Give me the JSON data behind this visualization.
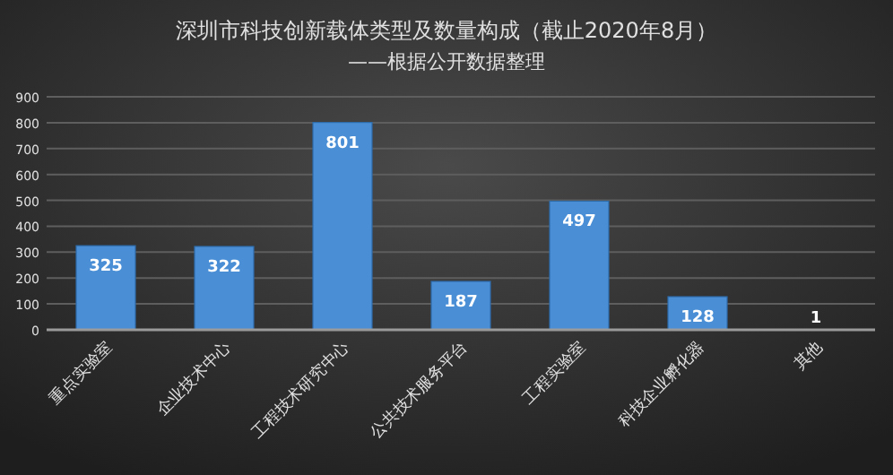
{
  "chart_data": {
    "type": "bar",
    "title": "深圳市科技创新载体类型及数量构成（截止2020年8月）",
    "subtitle": "——根据公开数据整理",
    "categories": [
      "重点实验室",
      "企业技术中心",
      "工程技术研究中心",
      "公共技术服务平台",
      "工程实验室",
      "科技企业孵化器",
      "其他"
    ],
    "values": [
      325,
      322,
      801,
      187,
      497,
      128,
      1
    ],
    "color": "#4a8fd6",
    "ylim": [
      0,
      900
    ],
    "yticks": [
      0,
      100,
      200,
      300,
      400,
      500,
      600,
      700,
      800,
      900
    ],
    "grid": "y",
    "data_labels": true
  }
}
